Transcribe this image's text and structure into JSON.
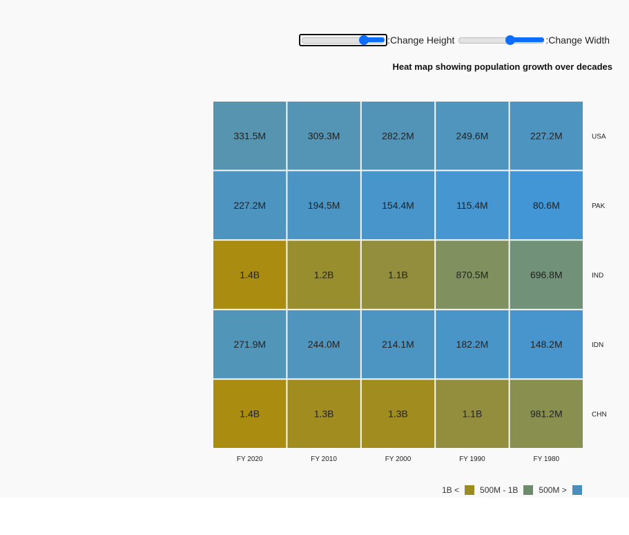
{
  "controls": {
    "height_label": ":Change Height",
    "height_value": 0.75,
    "width_label": ":Change Width",
    "width_value": 0.6
  },
  "chart_data": {
    "type": "heatmap",
    "title": "Heat map showing population growth over decades",
    "x_categories": [
      "FY 2020",
      "FY 2010",
      "FY 2000",
      "FY 1990",
      "FY 1980"
    ],
    "y_categories": [
      "USA",
      "PAK",
      "IND",
      "IDN",
      "CHN"
    ],
    "cells": [
      [
        "331.5M",
        "309.3M",
        "282.2M",
        "249.6M",
        "227.2M"
      ],
      [
        "227.2M",
        "194.5M",
        "154.4M",
        "115.4M",
        "80.6M"
      ],
      [
        "1.4B",
        "1.2B",
        "1.1B",
        "870.5M",
        "696.8M"
      ],
      [
        "271.9M",
        "244.0M",
        "214.1M",
        "182.2M",
        "148.2M"
      ],
      [
        "1.4B",
        "1.3B",
        "1.3B",
        "1.1B",
        "981.2M"
      ]
    ],
    "values": [
      [
        331.5,
        309.3,
        282.2,
        249.6,
        227.2
      ],
      [
        227.2,
        194.5,
        154.4,
        115.4,
        80.6
      ],
      [
        1400,
        1200,
        1100,
        870.5,
        696.8
      ],
      [
        271.9,
        244.0,
        214.1,
        182.2,
        148.2
      ],
      [
        1400,
        1300,
        1300,
        1100,
        981.2
      ]
    ],
    "unit": "millions",
    "color_scale": {
      "min_value": 80,
      "max_value": 1400,
      "low_color": "#4296d6",
      "high_color": "#a98c10"
    },
    "legend": [
      {
        "label": "1B <",
        "color": "#998c20"
      },
      {
        "label": "500M - 1B",
        "color": "#6e8c6c"
      },
      {
        "label": "500M >",
        "color": "#4a8fbc"
      }
    ]
  }
}
